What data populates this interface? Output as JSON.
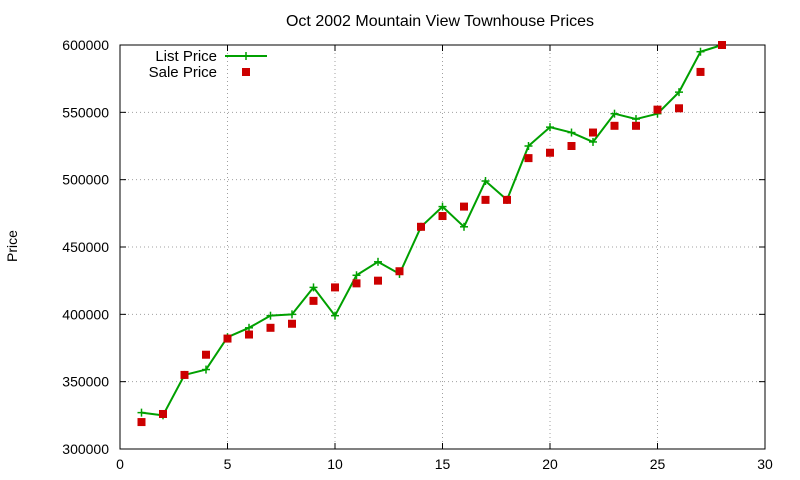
{
  "chart_data": {
    "type": "line",
    "title": "Oct 2002 Mountain View Townhouse Prices",
    "xlabel": "",
    "ylabel": "Price",
    "xlim": [
      0,
      30
    ],
    "ylim": [
      300000,
      600000
    ],
    "xticks": [
      0,
      5,
      10,
      15,
      20,
      25,
      30
    ],
    "yticks": [
      300000,
      350000,
      400000,
      450000,
      500000,
      550000,
      600000
    ],
    "grid": true,
    "legend_position": "top-left",
    "series": [
      {
        "name": "List Price",
        "style": "line with plus markers",
        "color": "#00a000",
        "x": [
          1,
          2,
          3,
          4,
          5,
          6,
          7,
          8,
          9,
          10,
          11,
          12,
          13,
          14,
          15,
          16,
          17,
          18,
          19,
          20,
          21,
          22,
          23,
          24,
          25,
          26,
          27,
          28
        ],
        "values": [
          327000,
          325000,
          355000,
          359000,
          383000,
          390000,
          399000,
          400000,
          420000,
          399000,
          429000,
          439000,
          430000,
          465000,
          480000,
          465000,
          499000,
          485000,
          525000,
          539000,
          535000,
          528000,
          549000,
          545000,
          549000,
          565000,
          595000,
          600000
        ]
      },
      {
        "name": "Sale Price",
        "style": "square markers",
        "color": "#cc0000",
        "x": [
          1,
          2,
          3,
          4,
          5,
          6,
          7,
          8,
          9,
          10,
          11,
          12,
          13,
          14,
          15,
          16,
          17,
          18,
          19,
          20,
          21,
          22,
          23,
          24,
          25,
          26,
          27,
          28
        ],
        "values": [
          320000,
          326000,
          355000,
          370000,
          382000,
          385000,
          390000,
          393000,
          410000,
          420000,
          423000,
          425000,
          432000,
          465000,
          473000,
          480000,
          485000,
          485000,
          516000,
          520000,
          525000,
          535000,
          540000,
          540000,
          552000,
          553000,
          580000,
          600000
        ]
      }
    ]
  }
}
